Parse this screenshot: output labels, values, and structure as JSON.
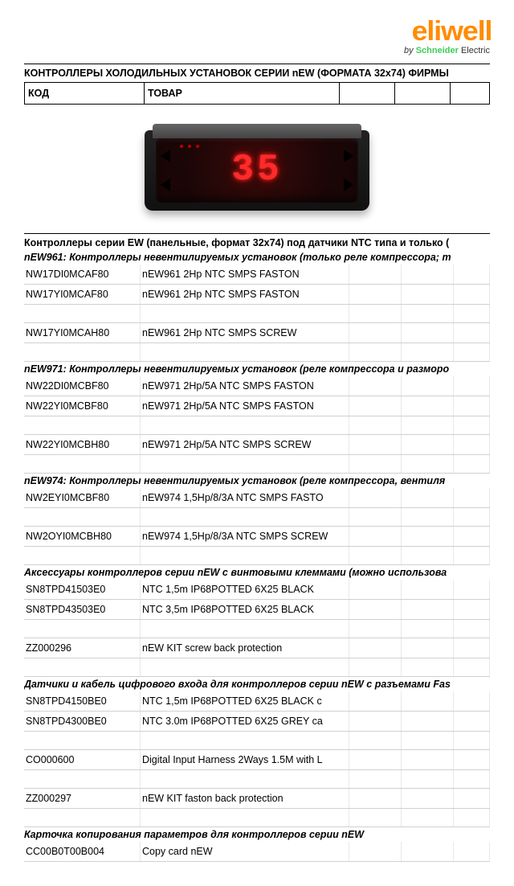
{
  "logo": {
    "word": "eliwell",
    "sub_by": "by",
    "sub_brand": "Schneider",
    "sub_electric": "Electric",
    "brand_color": "#ff8c00",
    "schneider_color": "#3dcd58"
  },
  "title": "КОНТРОЛЛЕРЫ ХОЛОДИЛЬНЫХ УСТАНОВОК СЕРИИ nEW  (ФОРМАТА 32x74) ФИРМЫ",
  "header": {
    "code": "КОД",
    "product": "ТОВАР"
  },
  "product_display": {
    "digits": "35"
  },
  "sections": [
    {
      "head": "Контроллеры серии EW (панельные, формат 32x74) под датчики NTC типа и только (",
      "groups": [
        {
          "sub": "nEW961: Контроллеры невентилируемых установок (только реле компрессора; т",
          "rows": [
            {
              "code": "NW17DI0MCAF80",
              "desc": "nEW961 2Hp NTC SMPS FASTON"
            },
            {
              "code": "NW17YI0MCAF80",
              "desc": "nEW961 2Hp NTC SMPS FASTON"
            },
            {
              "gap": true
            },
            {
              "code": "NW17YI0MCAH80",
              "desc": "nEW961 2Hp NTC SMPS SCREW"
            },
            {
              "gap": true
            }
          ]
        },
        {
          "sub": "nEW971: Контроллеры невентилируемых установок (реле компрессора и разморо",
          "rows": [
            {
              "code": "NW22DI0MCBF80",
              "desc": "nEW971 2Hp/5A NTC SMPS FASTON"
            },
            {
              "code": "NW22YI0MCBF80",
              "desc": "nEW971 2Hp/5A NTC SMPS FASTON"
            },
            {
              "gap": true
            },
            {
              "code": "NW22YI0MCBH80",
              "desc": "nEW971 2Hp/5A NTC SMPS SCREW"
            },
            {
              "gap": true
            }
          ]
        },
        {
          "sub": "nEW974: Контроллеры невентилируемых установок (реле компрессора, вентиля",
          "rows": [
            {
              "code": "NW2EYI0MCBF80",
              "desc": "nEW974 1,5Hp/8/3A NTC SMPS FASTO"
            },
            {
              "gap": true
            },
            {
              "code": "NW2OYI0MCBH80",
              "desc": "nEW974 1,5Hp/8/3A NTC SMPS SCREW"
            },
            {
              "gap": true
            }
          ]
        },
        {
          "sub": "Аксессуары  контроллеров серии nEW с винтовыми клеммами (можно использова",
          "rows": [
            {
              "code": "SN8TPD41503E0",
              "desc": "NTC 1,5m IP68POTTED 6X25 BLACK"
            },
            {
              "code": "SN8TPD43503E0",
              "desc": "NTC 3,5m IP68POTTED 6X25 BLACK"
            },
            {
              "gap": true
            },
            {
              "code": "ZZ000296",
              "desc": "nEW KIT screw back protection"
            },
            {
              "gap": true
            }
          ]
        },
        {
          "sub": "Датчики и кабель цифрового входа для контроллеров серии nEW с разъемами Fas",
          "rows": [
            {
              "code": "SN8TPD4150BE0",
              "desc": "NTC 1,5m IP68POTTED 6X25 BLACK c"
            },
            {
              "code": "SN8TPD4300BE0",
              "desc": "NTC 3.0m IP68POTTED 6X25 GREY ca"
            },
            {
              "gap": true
            },
            {
              "code": "CO000600",
              "desc": "Digital Input Harness 2Ways 1.5M with L"
            },
            {
              "gap": true
            },
            {
              "code": "ZZ000297",
              "desc": "nEW KIT faston back protection"
            },
            {
              "gap": true
            }
          ]
        },
        {
          "sub": "Карточка копирования параметров для контроллеров серии nEW",
          "rows": [
            {
              "code": "CC00B0T00B004",
              "desc": "Copy card  nEW"
            }
          ]
        }
      ]
    }
  ]
}
